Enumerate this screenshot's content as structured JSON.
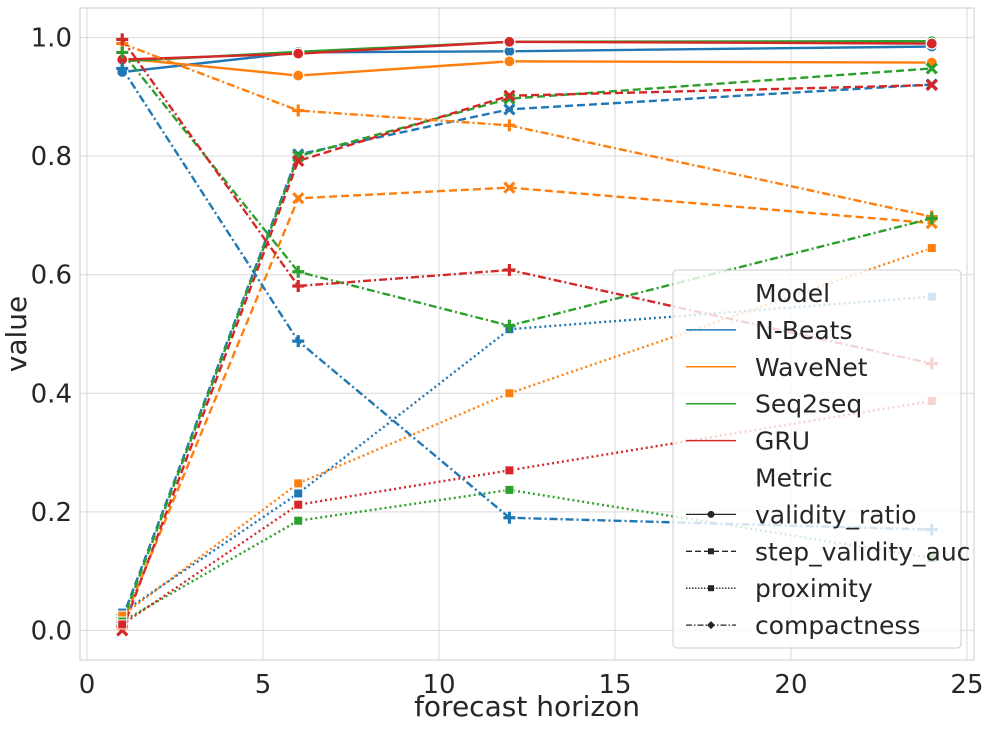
{
  "chart_data": {
    "type": "line",
    "title": "",
    "xlabel": "forecast horizon",
    "ylabel": "value",
    "xlim": [
      -0.2,
      25.2
    ],
    "ylim": [
      -0.05,
      1.05
    ],
    "xticks": [
      0,
      5,
      10,
      15,
      20,
      25
    ],
    "yticks": [
      0.0,
      0.2,
      0.4,
      0.6,
      0.8,
      1.0
    ],
    "xtick_labels": [
      "0",
      "5",
      "10",
      "15",
      "20",
      "25"
    ],
    "ytick_labels": [
      "0.0",
      "0.2",
      "0.4",
      "0.6",
      "0.8",
      "1.0"
    ],
    "grid": true,
    "x": [
      1,
      6,
      12,
      24
    ],
    "models": [
      {
        "name": "N-Beats",
        "color": "#1f77b4"
      },
      {
        "name": "WaveNet",
        "color": "#ff7f0e"
      },
      {
        "name": "Seq2seq",
        "color": "#2ca02c"
      },
      {
        "name": "GRU",
        "color": "#d62728"
      }
    ],
    "metrics": [
      {
        "name": "validity_ratio",
        "dash": "solid",
        "marker": "circle"
      },
      {
        "name": "step_validity_auc",
        "dash": "dashed",
        "marker": "x"
      },
      {
        "name": "proximity",
        "dash": "dotted",
        "marker": "square"
      },
      {
        "name": "compactness",
        "dash": "dashdot",
        "marker": "plus"
      }
    ],
    "series": [
      {
        "model": "N-Beats",
        "metric": "validity_ratio",
        "values": [
          0.942,
          0.975,
          0.977,
          0.985
        ]
      },
      {
        "model": "WaveNet",
        "metric": "validity_ratio",
        "values": [
          0.965,
          0.936,
          0.96,
          0.958
        ]
      },
      {
        "model": "Seq2seq",
        "metric": "validity_ratio",
        "values": [
          0.96,
          0.976,
          0.993,
          0.994
        ]
      },
      {
        "model": "GRU",
        "metric": "validity_ratio",
        "values": [
          0.963,
          0.973,
          0.993,
          0.99
        ]
      },
      {
        "model": "N-Beats",
        "metric": "step_validity_auc",
        "values": [
          0.02,
          0.803,
          0.879,
          0.921
        ]
      },
      {
        "model": "WaveNet",
        "metric": "step_validity_auc",
        "values": [
          0.01,
          0.729,
          0.747,
          0.687
        ]
      },
      {
        "model": "Seq2seq",
        "metric": "step_validity_auc",
        "values": [
          0.015,
          0.8,
          0.897,
          0.948
        ]
      },
      {
        "model": "GRU",
        "metric": "step_validity_auc",
        "values": [
          0.0,
          0.792,
          0.902,
          0.92
        ]
      },
      {
        "model": "N-Beats",
        "metric": "proximity",
        "values": [
          0.03,
          0.231,
          0.508,
          0.563
        ]
      },
      {
        "model": "WaveNet",
        "metric": "proximity",
        "values": [
          0.025,
          0.248,
          0.4,
          0.645
        ]
      },
      {
        "model": "Seq2seq",
        "metric": "proximity",
        "values": [
          0.015,
          0.185,
          0.237,
          0.122
        ]
      },
      {
        "model": "GRU",
        "metric": "proximity",
        "values": [
          0.01,
          0.212,
          0.27,
          0.387
        ]
      },
      {
        "model": "N-Beats",
        "metric": "compactness",
        "values": [
          0.948,
          0.488,
          0.19,
          0.17
        ]
      },
      {
        "model": "WaveNet",
        "metric": "compactness",
        "values": [
          0.99,
          0.877,
          0.852,
          0.698
        ]
      },
      {
        "model": "Seq2seq",
        "metric": "compactness",
        "values": [
          0.975,
          0.605,
          0.514,
          0.695
        ]
      },
      {
        "model": "GRU",
        "metric": "compactness",
        "values": [
          0.997,
          0.581,
          0.608,
          0.45
        ]
      }
    ],
    "legend": {
      "placement": "lower-right",
      "model_title": "Model",
      "metric_title": "Metric"
    }
  }
}
